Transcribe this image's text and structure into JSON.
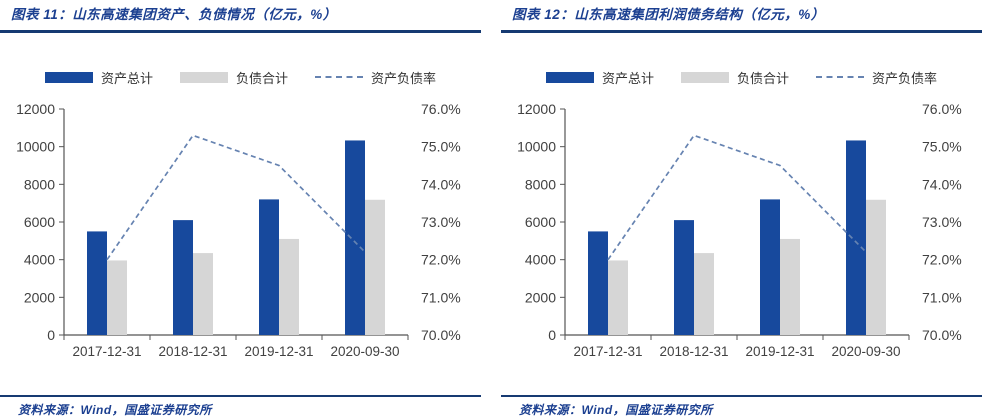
{
  "panels": [
    {
      "title": "图表 11：山东高速集团资产、负债情况（亿元，%）",
      "source": "资料来源：Wind，国盛证券研究所"
    },
    {
      "title": "图表 12：山东高速集团利润债务结构（亿元，%）",
      "source": "资料来源：Wind，国盛证券研究所"
    }
  ],
  "legend": [
    {
      "label": "资产总计",
      "swatch": "bar",
      "color": "#17499D"
    },
    {
      "label": "负债合计",
      "swatch": "bar",
      "color": "#D6D6D6"
    },
    {
      "label": "资产负债率",
      "swatch": "dashed-line",
      "color": "#6683B1"
    }
  ],
  "colors": {
    "navy_text": "#1C4091",
    "rule": "#163A72",
    "bar_blue": "#17499D",
    "bar_gray": "#D6D6D6",
    "dash_line": "#6683B1",
    "axis_text": "#414141",
    "axis_line": "#555555"
  },
  "chart_data": [
    {
      "type": "bar",
      "title": "图表 11：山东高速集团资产、负债情况（亿元，%）",
      "categories": [
        "2017-12-31",
        "2018-12-31",
        "2019-12-31",
        "2020-09-30"
      ],
      "series": [
        {
          "name": "资产总计",
          "type": "bar",
          "axis": "left",
          "values": [
            5500,
            6100,
            7200,
            10330
          ]
        },
        {
          "name": "负债合计",
          "type": "bar",
          "axis": "left",
          "values": [
            3960,
            4350,
            5100,
            7180
          ]
        },
        {
          "name": "资产负债率",
          "type": "line",
          "style": "dashed",
          "axis": "right",
          "values": [
            72.0,
            75.3,
            74.5,
            72.2
          ]
        }
      ],
      "left_axis": {
        "min": 0,
        "max": 12000,
        "step": 2000,
        "ticks": [
          "0",
          "2000",
          "4000",
          "6000",
          "8000",
          "10000",
          "12000"
        ]
      },
      "right_axis": {
        "min": 70,
        "max": 76,
        "step": 1,
        "ticks": [
          "70.0%",
          "71.0%",
          "72.0%",
          "73.0%",
          "74.0%",
          "75.0%",
          "76.0%"
        ]
      },
      "grid": false,
      "legend_position": "top"
    },
    {
      "type": "bar",
      "title": "图表 12：山东高速集团利润债务结构（亿元，%）",
      "categories": [
        "2017-12-31",
        "2018-12-31",
        "2019-12-31",
        "2020-09-30"
      ],
      "series": [
        {
          "name": "资产总计",
          "type": "bar",
          "axis": "left",
          "values": [
            5500,
            6100,
            7200,
            10330
          ]
        },
        {
          "name": "负债合计",
          "type": "bar",
          "axis": "left",
          "values": [
            3960,
            4350,
            5100,
            7180
          ]
        },
        {
          "name": "资产负债率",
          "type": "line",
          "style": "dashed",
          "axis": "right",
          "values": [
            72.0,
            75.3,
            74.5,
            72.2
          ]
        }
      ],
      "left_axis": {
        "min": 0,
        "max": 12000,
        "step": 2000,
        "ticks": [
          "0",
          "2000",
          "4000",
          "6000",
          "8000",
          "10000",
          "12000"
        ]
      },
      "right_axis": {
        "min": 70,
        "max": 76,
        "step": 1,
        "ticks": [
          "70.0%",
          "71.0%",
          "72.0%",
          "73.0%",
          "74.0%",
          "75.0%",
          "76.0%"
        ]
      },
      "grid": false,
      "legend_position": "top"
    }
  ]
}
